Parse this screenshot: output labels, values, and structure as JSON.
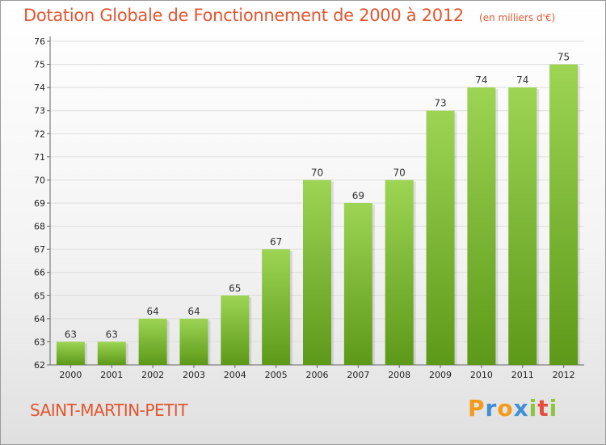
{
  "header": {
    "title": "Dotation Globale de Fonctionnement de 2000 à 2012",
    "unit": "(en milliers d'€)"
  },
  "footer": {
    "commune": "SAINT-MARTIN-PETIT",
    "brand": {
      "text": "Proxiti",
      "letters": [
        {
          "ch": "P",
          "color": "#f29a1a"
        },
        {
          "ch": "r",
          "color": "#3f8fd6"
        },
        {
          "ch": "o",
          "color": "#f29a1a"
        },
        {
          "ch": "x",
          "color": "#3f8fd6"
        },
        {
          "ch": "i",
          "color": "#8cc63f"
        },
        {
          "ch": "t",
          "color": "#e74c3c"
        },
        {
          "ch": "i",
          "color": "#8cc63f"
        }
      ]
    }
  },
  "colors": {
    "title": "#e2562f",
    "bar_top": "#9dd454",
    "bar_bottom": "#5d9918",
    "grid": "#dddddd",
    "axis_text": "#222222"
  },
  "chart_data": {
    "type": "bar",
    "categories": [
      "2000",
      "2001",
      "2002",
      "2003",
      "2004",
      "2005",
      "2006",
      "2007",
      "2008",
      "2009",
      "2010",
      "2011",
      "2012"
    ],
    "values": [
      63,
      63,
      64,
      64,
      65,
      67,
      70,
      69,
      70,
      73,
      74,
      74,
      75
    ],
    "data_labels": [
      "63",
      "63",
      "64",
      "64",
      "65",
      "67",
      "70",
      "69",
      "70",
      "73",
      "74",
      "74",
      "75"
    ],
    "y_ticks": [
      "62",
      "63",
      "64",
      "65",
      "66",
      "67",
      "68",
      "69",
      "70",
      "71",
      "72",
      "73",
      "74",
      "75",
      "76"
    ],
    "ylim": [
      62,
      76
    ],
    "grid": true,
    "legend": "none"
  }
}
